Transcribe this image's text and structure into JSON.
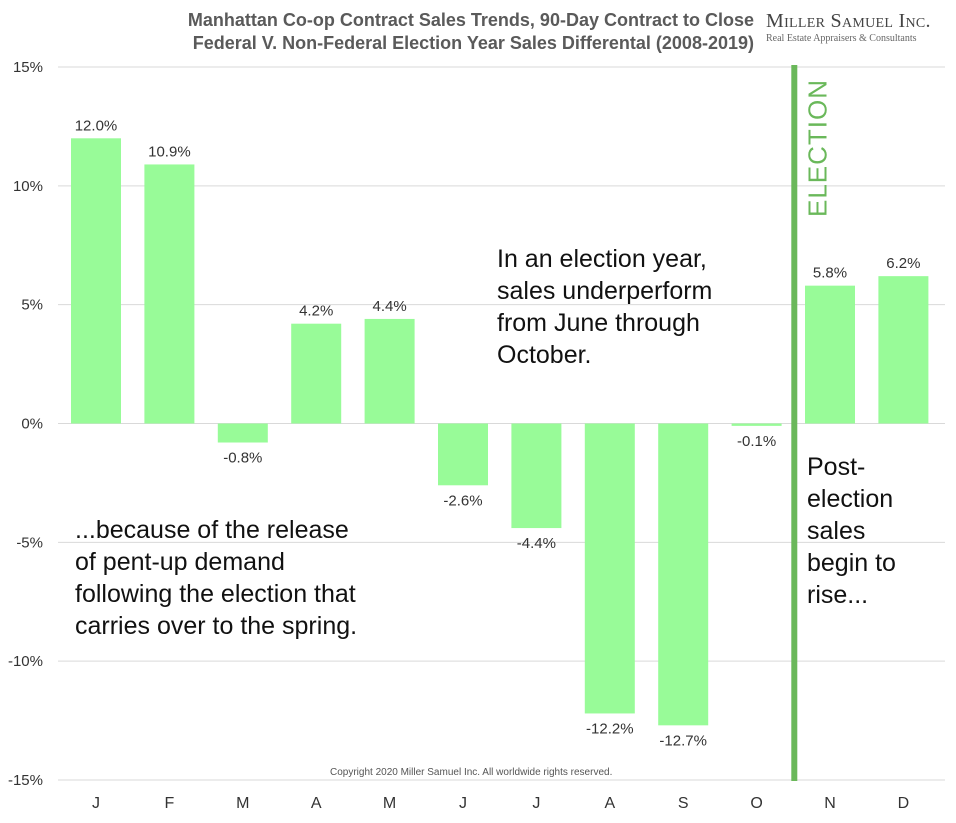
{
  "header": {
    "title_line1": "Manhattan Co-op Contract Sales Trends, 90-Day Contract to Close",
    "title_line2": "Federal V. Non-Federal Election Year Sales Differental (2008-2019)",
    "logo_name": "Miller Samuel Inc.",
    "logo_tagline": "Real Estate Appraisers & Consultants"
  },
  "annotations": {
    "middle": "In an election year,\nsales underperform\nfrom June through\nOctober.",
    "left": "...because of the release\nof pent-up demand\nfollowing the election that\ncarries over to the spring.",
    "right": "Post-\nelection\nsales\nbegin to\nrise...",
    "election_marker": "ELECTION"
  },
  "footer": {
    "copyright": "Copyright 2020 Miller Samuel Inc. All worldwide rights reserved."
  },
  "colors": {
    "bar": "#98fb98",
    "election_line": "#6ab85a",
    "grid": "#d9d9d9",
    "axis_text": "#333333"
  },
  "chart_data": {
    "type": "bar",
    "categories": [
      "J",
      "F",
      "M",
      "A",
      "M",
      "J",
      "J",
      "A",
      "S",
      "O",
      "N",
      "D"
    ],
    "values": [
      12.0,
      10.9,
      -0.8,
      4.2,
      4.4,
      -2.6,
      -4.4,
      -12.2,
      -12.7,
      -0.1,
      5.8,
      6.2
    ],
    "data_labels": [
      "12.0%",
      "10.9%",
      "-0.8%",
      "4.2%",
      "4.4%",
      "-2.6%",
      "-4.4%",
      "-12.2%",
      "-12.7%",
      "-0.1%",
      "5.8%",
      "6.2%"
    ],
    "y_ticks": [
      15,
      10,
      5,
      0,
      -5,
      -10,
      -15
    ],
    "y_tick_labels": [
      "15%",
      "10%",
      "5%",
      "0%",
      "-5%",
      "-10%",
      "-15%"
    ],
    "ylim": [
      -15,
      15
    ],
    "grid": true,
    "title": "Manhattan Co-op Contract Sales Trends, 90-Day Contract to Close",
    "subtitle": "Federal V. Non-Federal Election Year Sales Differental (2008-2019)",
    "xlabel": "",
    "ylabel": "",
    "election_marker_after": "O"
  }
}
